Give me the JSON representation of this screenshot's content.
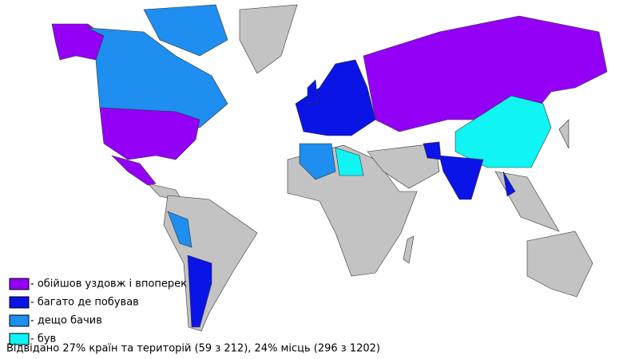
{
  "legend": [
    {
      "label": "- обійшов уздовж і впоперек",
      "color": "#9400f6"
    },
    {
      "label": "- багато де побував",
      "color": "#0a14e6"
    },
    {
      "label": "- дещо бачив",
      "color": "#1e8ef0"
    },
    {
      "label": "- був",
      "color": "#10f4f4"
    }
  ],
  "caption": "Відвідано 27% країн та територій (59 з 212), 24% місць (296 з 1202)"
}
